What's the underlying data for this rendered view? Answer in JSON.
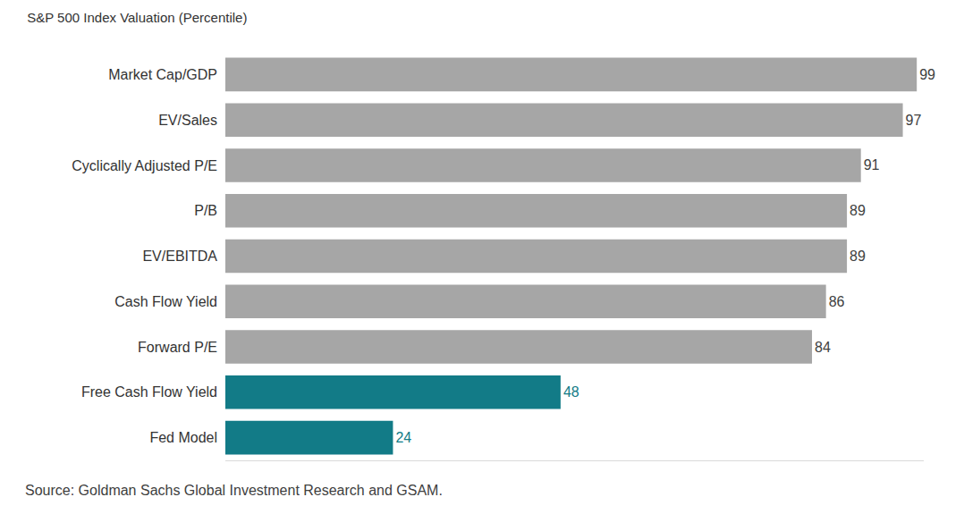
{
  "chart_data": {
    "type": "bar",
    "title": "S&P 500 Index Valuation (Percentile)",
    "orientation": "horizontal",
    "categories": [
      "Market Cap/GDP",
      "EV/Sales",
      "Cyclically Adjusted P/E",
      "P/B",
      "EV/EBITDA",
      "Cash Flow Yield",
      "Forward P/E",
      "Free Cash Flow Yield",
      "Fed Model"
    ],
    "values": [
      99,
      97,
      91,
      89,
      89,
      86,
      84,
      48,
      24
    ],
    "colors": [
      "#a6a6a6",
      "#a6a6a6",
      "#a6a6a6",
      "#a6a6a6",
      "#a6a6a6",
      "#a6a6a6",
      "#a6a6a6",
      "#127b87",
      "#127b87"
    ],
    "xlim": [
      0,
      100
    ],
    "xticks": [],
    "data_labels": true,
    "tick_labels": "y",
    "grid": false,
    "annotations": [
      "Source: Goldman Sachs Global Investment Research and GSAM."
    ]
  }
}
